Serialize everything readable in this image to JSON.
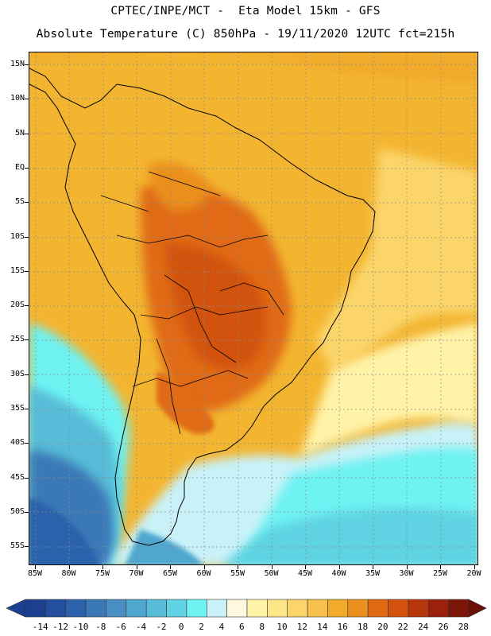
{
  "title": {
    "line1": "CPTEC/INPE/MCT -  Eta Model 15km - GFS",
    "line2": "Absolute Temperature (C) 850hPa - 19/11/2020 12UTC fct=215h"
  },
  "map": {
    "region": "South America",
    "variable": "Absolute Temperature (C) 850hPa"
  },
  "axes": {
    "lat_labels": [
      "15N",
      "10N",
      "5N",
      "EQ",
      "5S",
      "10S",
      "15S",
      "20S",
      "25S",
      "30S",
      "35S",
      "40S",
      "45S",
      "50S",
      "55S"
    ],
    "lon_labels": [
      "85W",
      "80W",
      "75W",
      "70W",
      "65W",
      "60W",
      "55W",
      "50W",
      "45W",
      "40W",
      "35W",
      "30W",
      "25W",
      "20W"
    ]
  },
  "colorbar": {
    "labels": [
      "-14",
      "-12",
      "-10",
      "-8",
      "-6",
      "-4",
      "-2",
      "0",
      "2",
      "4",
      "6",
      "8",
      "10",
      "12",
      "14",
      "16",
      "18",
      "20",
      "22",
      "24",
      "26",
      "28"
    ],
    "colors": [
      "#1d3f8f",
      "#244f9e",
      "#2c62ab",
      "#3a78b8",
      "#4a8fc4",
      "#4fa7cf",
      "#56bcd8",
      "#5fd3e3",
      "#6ef2f2",
      "#c8f2f8",
      "#fff7e0",
      "#fff3a8",
      "#fde688",
      "#fbd56a",
      "#f6c04a",
      "#f1aa2a",
      "#eb8f1e",
      "#e06a12",
      "#d2520e",
      "#b8360c",
      "#9a220c",
      "#7b1608"
    ]
  }
}
